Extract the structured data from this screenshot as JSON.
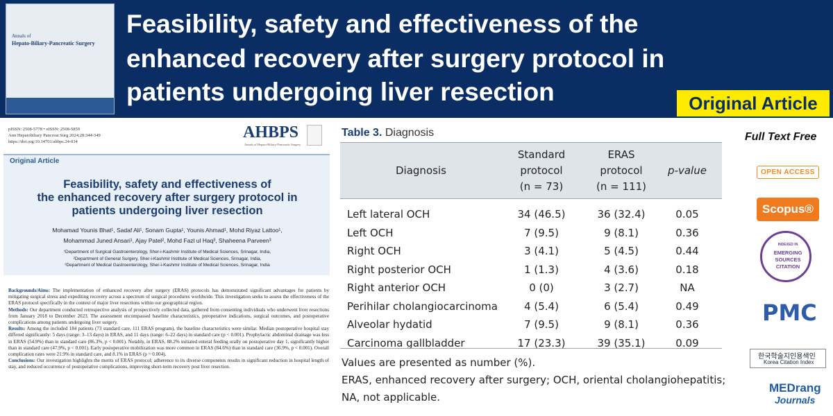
{
  "banner": {
    "title_lines": [
      "Feasibility, safety and effectiveness of the",
      "enhanced recovery after surgery protocol in",
      "patients undergoing liver resection"
    ],
    "badge": "Original Article"
  },
  "cover": {
    "journal_lines": [
      "Annals of",
      "Hepato-Biliary-Pancreatic Surgery"
    ]
  },
  "paper": {
    "issn": "pISSN: 2508-5778 • eISSN: 2508-5859",
    "citation": "Ann Hepatobiliary Pancreat Surg 2024;28:344-349",
    "doi": "https://doi.org/10.14701/ahbps.24-034",
    "logo": "AHBPS",
    "logo_sub": "Annals of Hepato-Biliary-Pancreatic Surgery",
    "section": "Original Article",
    "title_lines": [
      "Feasibility, safety and effectiveness of",
      "the enhanced recovery after surgery protocol in",
      "patients undergoing liver resection"
    ],
    "author_lines": [
      "Mohamad Younis Bhat¹, Sadaf Ali¹, Sonam Gupta¹, Younis Ahmad¹, Mohd Riyaz Lattoo¹,",
      "Mohammad Juned Ansari¹, Ajay Patel², Mohd Fazl ul Haq³, Shaheena Parveen³"
    ],
    "affiliations": [
      "¹Department of Surgical Gastroenterology, Sher-i-Kashmir Institute of Medical Sciences, Srinagar, India,",
      "²Department of General Surgery, Sher-i-Kashmir Institute of Medical Sciences, Srinagar, India,",
      "³Department of Medical Gastroenterology, Sher-i-Kashmir Institute of Medical Sciences, Srinagar, India"
    ],
    "abstract": [
      {
        "heading": "Backgrounds/Aims:",
        "text": "The implementation of enhanced recovery after surgery (ERAS) protocols has demonstrated significant advantages for patients by mitigating surgical stress and expediting recovery across a spectrum of surgical procedures worldwide. This investigation seeks to assess the effectiveness of the ERAS protocol specifically in the context of major liver resections within our geographical region."
      },
      {
        "heading": "Methods:",
        "text": "Our department conducted retrospective analysis of prospectively collected data, gathered from consenting individuals who underwent liver resections from January 2018 to December 2023. The assessment encompassed baseline characteristics, preoperative indications, surgical outcomes, and postoperative complications among patients undergoing liver surgery."
      },
      {
        "heading": "Results:",
        "text": "Among the included 184 patients (73 standard care, 111 ERAS program), the baseline characteristics were similar. Median postoperative hospital stay differed significantly: 5 days (range: 3–13 days) in ERAS, and 11 days (range: 6–22 days) in standard care (p < 0.001). Prophylactic abdominal drainage was less in ERAS (54.9%) than in standard care (86.3%, p < 0.001). Notably, in ERAS, 88.2% initiated enteral feeding orally on postoperative day 1, significantly higher than in standard care (47.9%, p < 0.001). Early postoperative mobilization was more common in ERAS (84.6%) than in standard care (36.9%, p < 0.001). Overall complication rates were 21.9% in standard care, and 8.1% in ERAS (p = 0.004)."
      },
      {
        "heading": "Conclusions:",
        "text": "Our investigation highlights the merits of ERAS protocol; adherence to its diverse components results in significant reduction in hospital length of stay, and reduced occurrence of postoperative complications, improving short-term recovery post liver resection."
      }
    ]
  },
  "table": {
    "label": "Table 3.",
    "caption": "Diagnosis",
    "columns": [
      [
        "Diagnosis"
      ],
      [
        "Standard",
        "protocol",
        "(n = 73)"
      ],
      [
        "ERAS",
        "protocol",
        "(n = 111)"
      ],
      [
        "p-value"
      ]
    ],
    "rows": [
      [
        "Left lateral OCH",
        "34 (46.5)",
        "36 (32.4)",
        "0.05"
      ],
      [
        "Left OCH",
        "7 (9.5)",
        "9 (8.1)",
        "0.36"
      ],
      [
        "Right OCH",
        "3 (4.1)",
        "5 (4.5)",
        "0.44"
      ],
      [
        "Right posterior OCH",
        "1 (1.3)",
        "4 (3.6)",
        "0.18"
      ],
      [
        "Right anterior OCH",
        "0 (0)",
        "3 (2.7)",
        "NA"
      ],
      [
        "Perihilar cholangiocarcinoma",
        "4 (5.4)",
        "6 (5.4)",
        "0.49"
      ],
      [
        "Alveolar hydatid",
        "7 (9.5)",
        "9 (8.1)",
        "0.36"
      ],
      [
        "Carcinoma gallbladder",
        "17 (23.3)",
        "39 (35.1)",
        "0.09"
      ]
    ],
    "notes": [
      "Values are presented as number (%).",
      "ERAS, enhanced recovery after surgery; OCH, oriental cholangiohepatitis;",
      "NA, not applicable."
    ]
  },
  "badges": {
    "full_text": "Full Text Free",
    "open_access": "OPEN ACCESS",
    "scopus": "Scopus®",
    "esci": [
      "INDEXED IN",
      "EMERGING",
      "SOURCES",
      "CITATION"
    ],
    "pmc": "PMC",
    "kci": [
      "한국학술지인용색인",
      "Korea Citation Index"
    ],
    "medrang": [
      "MEDrang",
      "Journals"
    ]
  }
}
